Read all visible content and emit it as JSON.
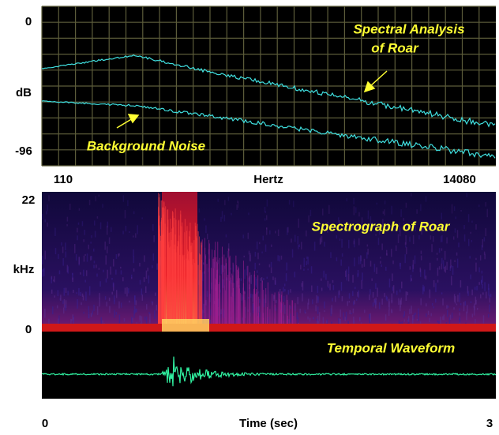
{
  "spectrum": {
    "y_labels": [
      "0",
      "dB",
      "-96"
    ],
    "x_labels": [
      "110",
      "Hertz",
      "14080"
    ],
    "annotations": [
      "Spectral Analysis",
      "of Roar",
      "Background Noise"
    ]
  },
  "spectrograph": {
    "y_labels": [
      "22",
      "kHz",
      "0"
    ],
    "title": "Spectrograph of Roar"
  },
  "waveform": {
    "title": "Temporal Waveform"
  },
  "time_axis": {
    "labels": [
      "0",
      "Time (sec)",
      "3"
    ]
  }
}
